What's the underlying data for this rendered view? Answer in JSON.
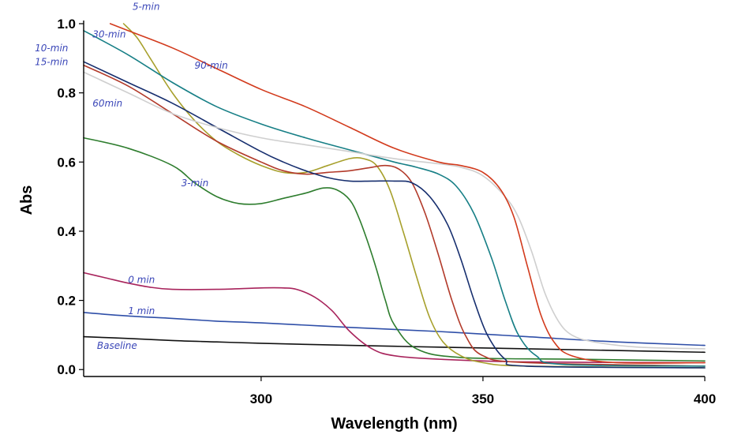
{
  "chart_data": {
    "type": "line",
    "title": "",
    "xlabel": "Wavelength (nm)",
    "ylabel": "Abs",
    "xlim": [
      260,
      400
    ],
    "ylim": [
      -0.02,
      1.0
    ],
    "xticks": [
      300,
      350,
      400
    ],
    "yticks": [
      0.0,
      0.2,
      0.4,
      0.6,
      0.8,
      1.0
    ],
    "xtick_labels": [
      "300",
      "350",
      "400"
    ],
    "ytick_labels": [
      "0.0",
      "0.2",
      "0.4",
      "0.6",
      "0.8",
      "1.0"
    ],
    "grid": false,
    "annotations": [
      {
        "text": "5-min",
        "x": 271,
        "y": 1.04
      },
      {
        "text": "30-min",
        "x": 262,
        "y": 0.96
      },
      {
        "text": "10-min",
        "x": 249,
        "y": 0.92
      },
      {
        "text": "15-min",
        "x": 249,
        "y": 0.88
      },
      {
        "text": "60min",
        "x": 262,
        "y": 0.76
      },
      {
        "text": "90-min",
        "x": 285,
        "y": 0.87
      },
      {
        "text": "3-min",
        "x": 282,
        "y": 0.53
      },
      {
        "text": "0 min",
        "x": 270,
        "y": 0.25
      },
      {
        "text": "1 min",
        "x": 270,
        "y": 0.16
      },
      {
        "text": "Baseline",
        "x": 263,
        "y": 0.06
      }
    ],
    "series": [
      {
        "name": "Baseline",
        "color": "#111111",
        "x": [
          260,
          270,
          280,
          290,
          300,
          320,
          340,
          360,
          380,
          400
        ],
        "y": [
          0.095,
          0.09,
          0.084,
          0.08,
          0.076,
          0.07,
          0.065,
          0.06,
          0.055,
          0.05
        ]
      },
      {
        "name": "1 min",
        "color": "#2f4fa8",
        "x": [
          260,
          270,
          280,
          290,
          300,
          320,
          340,
          360,
          380,
          400
        ],
        "y": [
          0.165,
          0.155,
          0.148,
          0.14,
          0.135,
          0.122,
          0.11,
          0.095,
          0.08,
          0.07
        ]
      },
      {
        "name": "0 min",
        "color": "#a8245c",
        "x": [
          260,
          265,
          270,
          275,
          280,
          290,
          300,
          305,
          308,
          312,
          316,
          320,
          325,
          330,
          340,
          360,
          400
        ],
        "y": [
          0.28,
          0.265,
          0.25,
          0.238,
          0.232,
          0.232,
          0.236,
          0.236,
          0.232,
          0.21,
          0.17,
          0.11,
          0.06,
          0.04,
          0.03,
          0.022,
          0.02
        ]
      },
      {
        "name": "3-min",
        "color": "#2e7d2e",
        "x": [
          260,
          270,
          280,
          285,
          290,
          295,
          300,
          305,
          310,
          314,
          317,
          320,
          322,
          324,
          326,
          328,
          330,
          335,
          345,
          370,
          400
        ],
        "y": [
          0.67,
          0.64,
          0.59,
          0.54,
          0.5,
          0.48,
          0.48,
          0.495,
          0.51,
          0.525,
          0.52,
          0.49,
          0.44,
          0.37,
          0.29,
          0.2,
          0.13,
          0.06,
          0.035,
          0.03,
          0.025
        ]
      },
      {
        "name": "5-min",
        "color": "#a7a02c",
        "x": [
          269,
          272,
          275,
          280,
          285,
          290,
          295,
          300,
          305,
          310,
          315,
          320,
          323,
          326,
          329,
          332,
          335,
          338,
          341,
          345,
          350,
          360,
          400
        ],
        "y": [
          1.0,
          0.96,
          0.9,
          0.8,
          0.72,
          0.66,
          0.62,
          0.59,
          0.57,
          0.57,
          0.59,
          0.61,
          0.61,
          0.59,
          0.52,
          0.4,
          0.27,
          0.15,
          0.08,
          0.04,
          0.02,
          0.01,
          0.005
        ]
      },
      {
        "name": "10-min",
        "color": "#b23a2a",
        "x": [
          260,
          270,
          280,
          290,
          300,
          305,
          310,
          315,
          320,
          325,
          328,
          331,
          334,
          337,
          340,
          343,
          346,
          350,
          360,
          400
        ],
        "y": [
          0.88,
          0.82,
          0.74,
          0.66,
          0.6,
          0.575,
          0.565,
          0.57,
          0.575,
          0.585,
          0.59,
          0.58,
          0.54,
          0.45,
          0.33,
          0.2,
          0.1,
          0.04,
          0.02,
          0.01
        ]
      },
      {
        "name": "15-min",
        "color": "#162e6e",
        "x": [
          260,
          270,
          280,
          290,
          300,
          305,
          310,
          315,
          320,
          325,
          330,
          334,
          338,
          342,
          345,
          348,
          351,
          355,
          360,
          400
        ],
        "y": [
          0.89,
          0.83,
          0.77,
          0.7,
          0.63,
          0.6,
          0.575,
          0.555,
          0.545,
          0.545,
          0.545,
          0.54,
          0.5,
          0.42,
          0.32,
          0.2,
          0.1,
          0.03,
          0.01,
          0.005
        ]
      },
      {
        "name": "30-min",
        "color": "#177f86",
        "x": [
          260,
          270,
          280,
          290,
          300,
          310,
          320,
          330,
          335,
          340,
          344,
          348,
          352,
          355,
          358,
          362,
          368,
          400
        ],
        "y": [
          0.98,
          0.91,
          0.83,
          0.76,
          0.71,
          0.67,
          0.635,
          0.6,
          0.585,
          0.565,
          0.53,
          0.45,
          0.32,
          0.2,
          0.1,
          0.04,
          0.015,
          0.01
        ]
      },
      {
        "name": "60min",
        "color": "#cfcfcf",
        "x": [
          260,
          270,
          280,
          290,
          300,
          310,
          320,
          330,
          340,
          345,
          350,
          355,
          358,
          361,
          364,
          367,
          370,
          375,
          385,
          400
        ],
        "y": [
          0.86,
          0.8,
          0.74,
          0.7,
          0.67,
          0.65,
          0.63,
          0.61,
          0.595,
          0.585,
          0.56,
          0.5,
          0.44,
          0.34,
          0.22,
          0.14,
          0.1,
          0.08,
          0.065,
          0.06
        ]
      },
      {
        "name": "90-min",
        "color": "#d23a1c",
        "x": [
          266,
          270,
          280,
          290,
          300,
          310,
          320,
          330,
          340,
          345,
          350,
          354,
          357,
          360,
          363,
          366,
          370,
          380,
          400
        ],
        "y": [
          1.0,
          0.98,
          0.93,
          0.87,
          0.81,
          0.76,
          0.7,
          0.64,
          0.6,
          0.59,
          0.57,
          0.52,
          0.44,
          0.3,
          0.16,
          0.08,
          0.04,
          0.02,
          0.02
        ]
      }
    ]
  }
}
